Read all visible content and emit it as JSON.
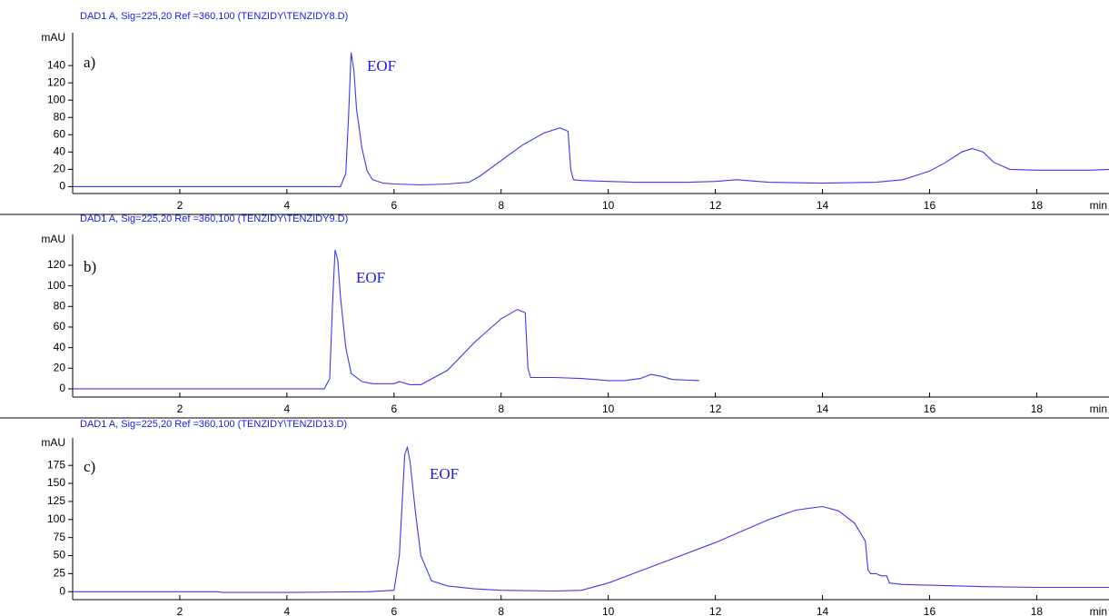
{
  "chart_data": [
    {
      "type": "line",
      "title": "DAD1 A, Sig=225,20 Ref =360,100 (TENZIDY\\TENZIDY8.D)",
      "y_label": "mAU",
      "x_label": "min",
      "panel_label": "a)",
      "annotation": "EOF",
      "color": "#3a3aee",
      "x": [
        0,
        1,
        2,
        3,
        4,
        5.0,
        5.1,
        5.15,
        5.2,
        5.25,
        5.3,
        5.4,
        5.5,
        5.6,
        5.8,
        6.0,
        6.5,
        7.0,
        7.4,
        7.6,
        8.0,
        8.4,
        8.8,
        9.1,
        9.25,
        9.3,
        9.35,
        9.5,
        10,
        10.5,
        11,
        11.5,
        12,
        12.4,
        12.8,
        13,
        14,
        15,
        15.5,
        16,
        16.3,
        16.6,
        16.8,
        17.0,
        17.2,
        17.5,
        18,
        19,
        19.35
      ],
      "values": [
        0,
        0,
        0,
        0,
        0,
        0,
        15,
        80,
        155,
        135,
        90,
        45,
        18,
        8,
        4,
        3,
        2,
        3,
        5,
        12,
        30,
        48,
        62,
        68,
        64,
        20,
        8,
        7,
        6,
        5,
        5,
        5,
        6,
        8,
        6,
        5,
        4,
        5,
        8,
        18,
        28,
        40,
        44,
        40,
        28,
        20,
        19,
        19,
        20
      ],
      "xlim": [
        0,
        19.35
      ],
      "ylim": [
        -8,
        178
      ],
      "xticks": [
        2,
        4,
        6,
        8,
        10,
        12,
        14,
        16,
        18
      ],
      "yticks": [
        0,
        20,
        40,
        60,
        80,
        100,
        120,
        140
      ]
    },
    {
      "type": "line",
      "title": "DAD1 A, Sig=225,20 Ref =360,100 (TENZIDY\\TENZIDY9.D)",
      "y_label": "mAU",
      "x_label": "min",
      "panel_label": "b)",
      "annotation": "EOF",
      "color": "#3a3aee",
      "x": [
        0,
        2,
        4,
        4.7,
        4.8,
        4.85,
        4.9,
        4.95,
        5.0,
        5.1,
        5.2,
        5.4,
        5.6,
        6.0,
        6.1,
        6.3,
        6.5,
        7.0,
        7.5,
        8.0,
        8.3,
        8.45,
        8.5,
        8.55,
        9,
        9.5,
        10,
        10.3,
        10.6,
        10.8,
        11.0,
        11.2,
        11.7
      ],
      "values": [
        0,
        0,
        0,
        0,
        10,
        80,
        135,
        125,
        90,
        40,
        15,
        7,
        5,
        5,
        7,
        4,
        4,
        18,
        45,
        68,
        77,
        74,
        20,
        11,
        11,
        10,
        8,
        8,
        10,
        14,
        12,
        9,
        8
      ],
      "xlim": [
        0,
        19.35
      ],
      "ylim": [
        -8,
        150
      ],
      "xticks": [
        2,
        4,
        6,
        8,
        10,
        12,
        14,
        16,
        18
      ],
      "yticks": [
        0,
        20,
        40,
        60,
        80,
        100,
        120
      ]
    },
    {
      "type": "line",
      "title": "DAD1 A, Sig=225,20 Ref =360,100 (TENZIDY\\TENZID13.D)",
      "y_label": "mAU",
      "x_label": "min",
      "panel_label": "c)",
      "annotation": "EOF",
      "color": "#3a3aee",
      "x": [
        0,
        2,
        2.7,
        2.8,
        4,
        5.5,
        6.0,
        6.1,
        6.2,
        6.25,
        6.3,
        6.4,
        6.5,
        6.7,
        7,
        7.5,
        8,
        9,
        9.5,
        10,
        11,
        12,
        13,
        13.5,
        14,
        14.3,
        14.6,
        14.8,
        14.85,
        14.9,
        15.0,
        15.1,
        15.2,
        15.25,
        15.5,
        16,
        17,
        18,
        19.35
      ],
      "values": [
        0,
        0,
        0,
        -1,
        -1,
        0,
        2,
        50,
        190,
        200,
        180,
        110,
        50,
        15,
        8,
        4,
        2,
        1,
        2,
        12,
        40,
        68,
        100,
        113,
        118,
        112,
        95,
        70,
        30,
        25,
        25,
        22,
        22,
        12,
        10,
        9,
        7,
        6,
        6
      ],
      "xlim": [
        0,
        19.35
      ],
      "ylim": [
        -11,
        213
      ],
      "xticks": [
        2,
        4,
        6,
        8,
        10,
        12,
        14,
        16,
        18
      ],
      "yticks": [
        0,
        25,
        50,
        75,
        100,
        125,
        150,
        175
      ]
    }
  ]
}
